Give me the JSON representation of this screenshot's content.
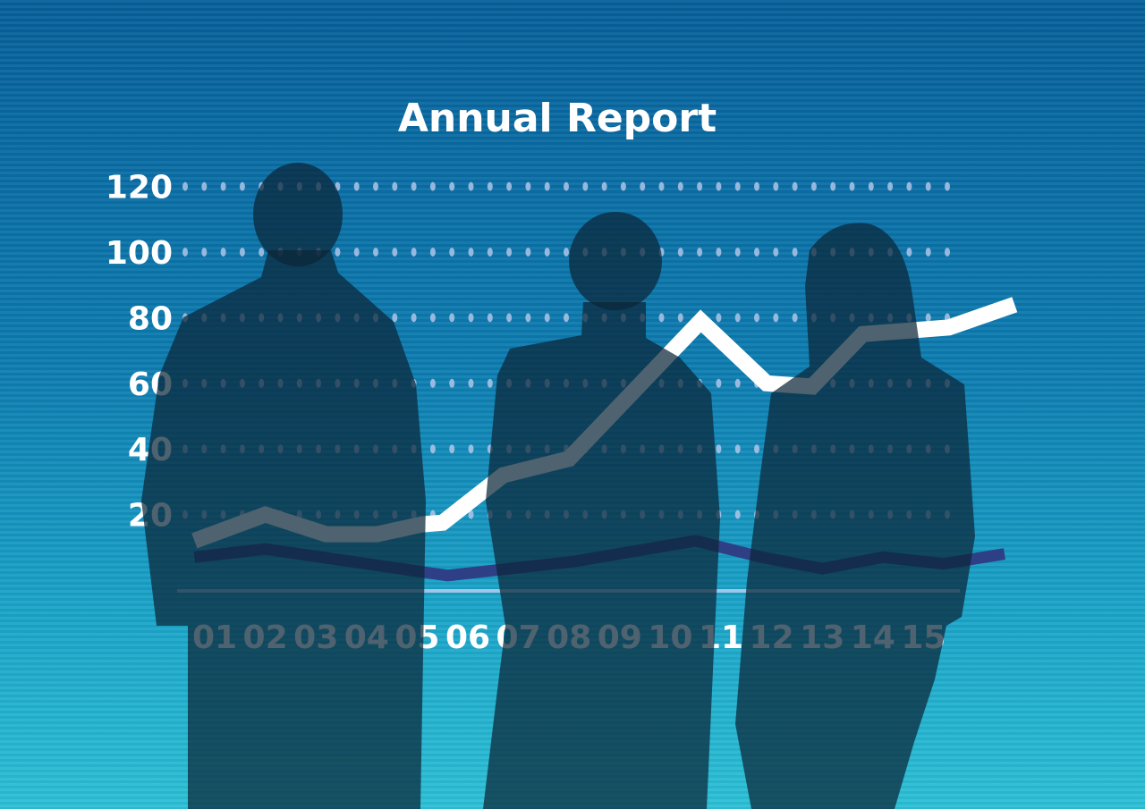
{
  "chart_data": {
    "type": "line",
    "title": "Annual Report",
    "xlabel": "",
    "ylabel": "",
    "x_tick_labels": [
      "01",
      "02",
      "03",
      "04",
      "05",
      "06",
      "07",
      "08",
      "09",
      "10",
      "11",
      "12",
      "13",
      "14",
      "15"
    ],
    "y_tick_labels": [
      "20",
      "40",
      "60",
      "80",
      "100",
      "120"
    ],
    "ylim": [
      0,
      120
    ],
    "grid": "dotted horizontal",
    "series": [
      {
        "color": "#ffffff",
        "x": [
          0.6,
          2.0,
          3.2,
          4.2,
          5.1,
          5.5,
          6.7,
          8.0,
          10.6,
          11.9,
          12.8,
          13.8,
          15.5,
          16.8
        ],
        "y": [
          12,
          20,
          14,
          14,
          17,
          17.5,
          32,
          37,
          79,
          60,
          59,
          75,
          77,
          84
        ]
      },
      {
        "color": "#2e3f86",
        "x": [
          0.6,
          2.0,
          5.1,
          5.6,
          8.1,
          10.5,
          11.8,
          13.0,
          14.2,
          15.4,
          16.6
        ],
        "y": [
          7,
          9.5,
          2.5,
          1.4,
          5.7,
          12,
          7,
          3.5,
          7,
          5,
          8
        ]
      }
    ]
  },
  "colors": {
    "background_top": "#06609a",
    "background_bottom": "#2cc0d6",
    "silhouettes": "#0b2538"
  }
}
